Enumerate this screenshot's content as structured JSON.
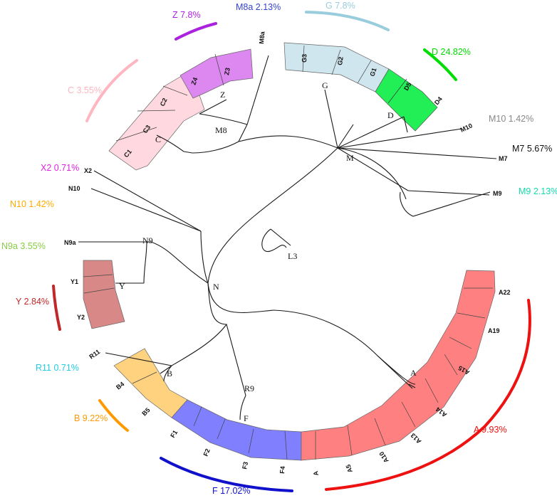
{
  "root_label": "L3",
  "nodes": {
    "n": "N",
    "m": "M",
    "m8": "M8",
    "z": "Z",
    "c": "C",
    "g": "G",
    "d": "D",
    "n9": "N9",
    "y": "Y",
    "b": "B",
    "r9": "R9",
    "f": "F",
    "a": "A"
  },
  "leaves": {
    "c1": "C1",
    "c3": "C3",
    "c2": "C2",
    "z4": "Z4",
    "z3": "Z3",
    "m8a": "M8a",
    "g3": "G3",
    "g2": "G2",
    "g1": "G1",
    "d5": "D5",
    "d4": "D4",
    "m10": "M10",
    "m7": "M7",
    "m9": "M9",
    "x2": "X2",
    "n10": "N10",
    "n9a": "N9a",
    "y1": "Y1",
    "y2": "Y2",
    "r11": "R11",
    "b4": "B4",
    "b5": "B5",
    "f1": "F1",
    "f2": "F2",
    "f3": "F3",
    "f4": "F4",
    "a_leaf": "A",
    "a5": "A5",
    "a10": "A10",
    "a13": "A13",
    "a14": "A14",
    "a15": "A15",
    "a19": "A19",
    "a22": "A22"
  },
  "groups": {
    "m8a": "M8a 2.13%",
    "g": "G 7.8%",
    "z": "Z 7.8%",
    "d": "D 24.82%",
    "c": "C 3.55%",
    "m10": "M10 1.42%",
    "m7": "M7 5.67%",
    "x2": "X2 0.71%",
    "m9": "M9 2.13%",
    "n10": "N10 1.42%",
    "n9a": "N9a 3.55%",
    "y": "Y 2.84%",
    "r11": "R11 0.71%",
    "b": "B 9.22%",
    "a": "A 9.93%",
    "f": "F 17.02%"
  },
  "colors": {
    "c_fill": "#ffd9df",
    "z_fill": "#dd88f0",
    "g_fill": "#cfe6ee",
    "d_fill": "#22ee55",
    "y_fill": "#d98888",
    "b_fill": "#ffd27f",
    "f_fill": "#8080ff",
    "a_fill": "#ff8080",
    "m8a": "#3344cc",
    "g": "#99ccdd",
    "z": "#aa22dd",
    "d": "#00dd00",
    "c": "#ffb6c1",
    "m10": "#888888",
    "m7": "#111111",
    "x2": "#dd22dd",
    "m9": "#11ddaa",
    "n10": "#ffaa00",
    "n9a": "#88cc44",
    "y": "#c0282a",
    "r11": "#22ccdd",
    "b": "#ff9900",
    "a": "#ee1111",
    "f": "#1111cc"
  }
}
